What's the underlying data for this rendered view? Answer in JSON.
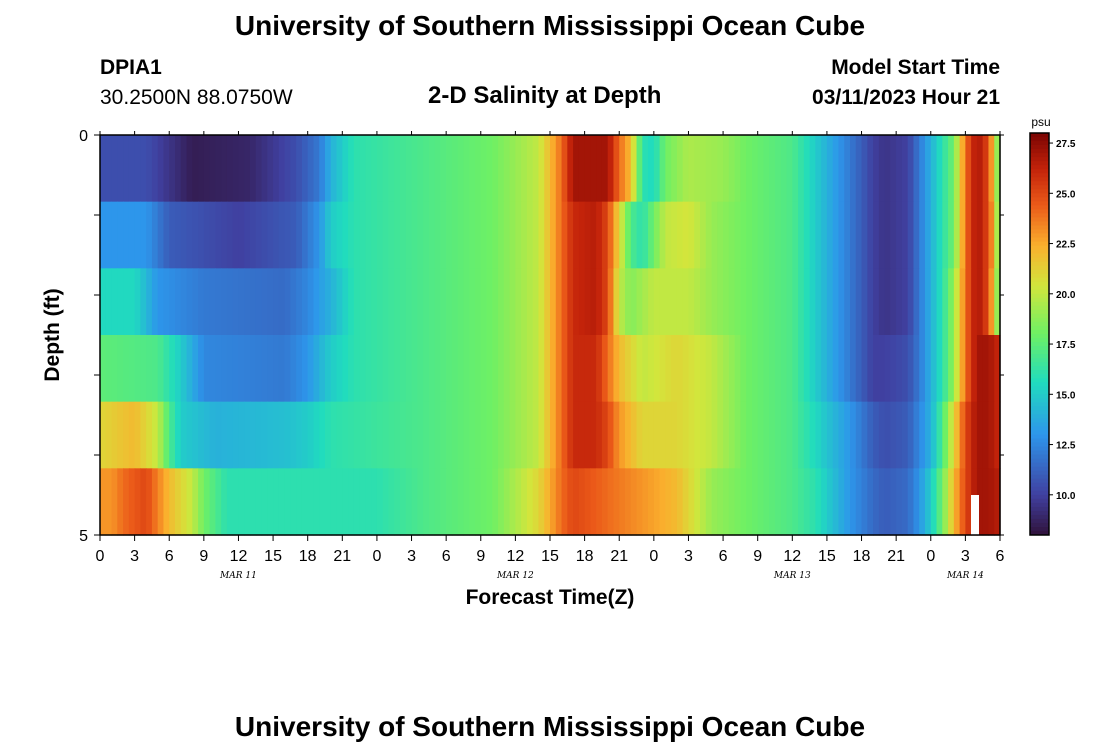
{
  "header": {
    "title": "University of Southern Mississippi Ocean Cube",
    "station": "DPIA1",
    "coords": "30.2500N  88.0750W",
    "subtitle": "2-D Salinity at Depth",
    "model_start_label": "Model Start Time",
    "model_start_time": "03/11/2023 Hour 21"
  },
  "footer": {
    "title": "University of Southern Mississippi Ocean Cube"
  },
  "chart_data": {
    "type": "heatmap",
    "title": "2-D Salinity at Depth",
    "xlabel": "Forecast Time(Z)",
    "ylabel": "Depth (ft)",
    "y_tick_labels": [
      "0",
      "5"
    ],
    "ylim": [
      0,
      5
    ],
    "x_tick_labels": [
      "0",
      "3",
      "6",
      "9",
      "12",
      "15",
      "18",
      "21",
      "0",
      "3",
      "6",
      "9",
      "12",
      "15",
      "18",
      "21",
      "0",
      "3",
      "6",
      "9",
      "12",
      "15",
      "18",
      "21",
      "0",
      "3",
      "6"
    ],
    "day_labels": [
      "MAR 11",
      "MAR 12",
      "MAR 13",
      "MAR 14"
    ],
    "colorbar": {
      "unit": "psu",
      "min": 8,
      "max": 28,
      "ticks": [
        "27.5",
        "25.0",
        "22.5",
        "20.0",
        "17.5",
        "15.0",
        "12.5",
        "10.0"
      ],
      "tick_values": [
        27.5,
        25.0,
        22.5,
        20.0,
        17.5,
        15.0,
        12.5,
        10.0
      ]
    },
    "time_hours_from_mar11_00": [
      0,
      78
    ],
    "depth_layers": 6,
    "salinity_keyframes_psu": [
      [
        [
          0,
          10.5
        ],
        [
          4,
          10.5
        ],
        [
          8,
          8.5
        ],
        [
          13,
          8.9
        ],
        [
          17,
          10.5
        ],
        [
          19,
          12
        ],
        [
          20,
          14
        ],
        [
          22,
          16
        ],
        [
          28,
          17
        ],
        [
          34,
          18
        ],
        [
          38,
          20
        ],
        [
          40,
          24
        ],
        [
          41,
          27
        ],
        [
          44,
          27
        ],
        [
          45,
          24
        ],
        [
          46,
          22
        ],
        [
          47,
          16
        ],
        [
          48,
          15.5
        ],
        [
          49,
          18
        ],
        [
          51,
          19.5
        ],
        [
          54,
          19
        ],
        [
          56,
          18
        ],
        [
          60,
          17
        ],
        [
          62,
          15
        ],
        [
          65,
          12
        ],
        [
          67,
          10
        ],
        [
          68,
          9.5
        ],
        [
          70,
          10
        ],
        [
          71,
          12
        ],
        [
          72,
          14
        ],
        [
          73,
          16
        ],
        [
          74,
          18
        ],
        [
          75,
          24
        ],
        [
          76,
          27
        ],
        [
          77,
          25
        ],
        [
          77.5,
          21
        ],
        [
          78,
          17
        ]
      ],
      [
        [
          0,
          13
        ],
        [
          4,
          13
        ],
        [
          6,
          11
        ],
        [
          12,
          10
        ],
        [
          17,
          11
        ],
        [
          19,
          13
        ],
        [
          20,
          15
        ],
        [
          22,
          16
        ],
        [
          28,
          17
        ],
        [
          34,
          18
        ],
        [
          38,
          20
        ],
        [
          40,
          24
        ],
        [
          41,
          26
        ],
        [
          43,
          26.5
        ],
        [
          44,
          25
        ],
        [
          45,
          21
        ],
        [
          46,
          17
        ],
        [
          47,
          16
        ],
        [
          49,
          20
        ],
        [
          51,
          20.5
        ],
        [
          53,
          19
        ],
        [
          56,
          18
        ],
        [
          60,
          17
        ],
        [
          62,
          15
        ],
        [
          65,
          12
        ],
        [
          67,
          10
        ],
        [
          68,
          9.5
        ],
        [
          70,
          10
        ],
        [
          71,
          12
        ],
        [
          72,
          14
        ],
        [
          73,
          16
        ],
        [
          74,
          18
        ],
        [
          75,
          24
        ],
        [
          76,
          27
        ],
        [
          77,
          25
        ],
        [
          77.5,
          22
        ],
        [
          78,
          17
        ]
      ],
      [
        [
          0,
          15.5
        ],
        [
          3,
          15.5
        ],
        [
          5,
          13
        ],
        [
          9,
          12
        ],
        [
          16,
          11.5
        ],
        [
          18,
          12.5
        ],
        [
          20,
          14
        ],
        [
          22,
          16
        ],
        [
          28,
          17
        ],
        [
          34,
          18
        ],
        [
          38,
          20
        ],
        [
          40,
          24
        ],
        [
          41,
          26
        ],
        [
          43,
          26.5
        ],
        [
          44,
          25
        ],
        [
          45,
          20
        ],
        [
          46,
          18.5
        ],
        [
          48,
          20
        ],
        [
          51,
          20
        ],
        [
          53,
          19
        ],
        [
          56,
          18
        ],
        [
          60,
          17
        ],
        [
          62,
          15
        ],
        [
          65,
          12
        ],
        [
          67,
          10
        ],
        [
          68,
          9.5
        ],
        [
          70,
          10
        ],
        [
          71,
          12
        ],
        [
          72,
          14
        ],
        [
          73,
          16
        ],
        [
          74,
          19
        ],
        [
          75,
          24
        ],
        [
          76,
          27
        ],
        [
          77,
          25
        ],
        [
          77.5,
          21
        ],
        [
          78,
          17
        ]
      ],
      [
        [
          0,
          17.5
        ],
        [
          5,
          17
        ],
        [
          7,
          15
        ],
        [
          9,
          12.5
        ],
        [
          16,
          12
        ],
        [
          18,
          13
        ],
        [
          20,
          15
        ],
        [
          22,
          16
        ],
        [
          28,
          17
        ],
        [
          34,
          18
        ],
        [
          38,
          20
        ],
        [
          40,
          24
        ],
        [
          41,
          26
        ],
        [
          43,
          26
        ],
        [
          44,
          24
        ],
        [
          45,
          22
        ],
        [
          47,
          20
        ],
        [
          50,
          21
        ],
        [
          53,
          20
        ],
        [
          56,
          18
        ],
        [
          60,
          17
        ],
        [
          62,
          15
        ],
        [
          65,
          12
        ],
        [
          67,
          10
        ],
        [
          68,
          10
        ],
        [
          70,
          10.5
        ],
        [
          71,
          12
        ],
        [
          72,
          14
        ],
        [
          73,
          16
        ],
        [
          74,
          19
        ],
        [
          75,
          24
        ],
        [
          76,
          27
        ],
        [
          77,
          27
        ],
        [
          78,
          26
        ]
      ],
      [
        [
          0,
          21
        ],
        [
          3,
          22
        ],
        [
          5,
          20
        ],
        [
          6,
          17
        ],
        [
          7,
          15
        ],
        [
          10,
          14
        ],
        [
          16,
          14.5
        ],
        [
          18,
          15
        ],
        [
          20,
          16
        ],
        [
          28,
          17
        ],
        [
          34,
          18
        ],
        [
          38,
          20
        ],
        [
          40,
          24
        ],
        [
          41,
          26
        ],
        [
          43,
          26
        ],
        [
          44,
          25
        ],
        [
          45,
          23
        ],
        [
          47,
          21
        ],
        [
          50,
          21
        ],
        [
          53,
          20
        ],
        [
          56,
          18
        ],
        [
          60,
          17
        ],
        [
          62,
          15.5
        ],
        [
          65,
          13
        ],
        [
          67,
          11
        ],
        [
          68,
          10.5
        ],
        [
          70,
          11
        ],
        [
          71,
          12.5
        ],
        [
          72,
          14
        ],
        [
          73,
          17
        ],
        [
          74,
          21
        ],
        [
          75,
          25
        ],
        [
          76,
          27
        ],
        [
          77,
          27
        ],
        [
          78,
          26
        ]
      ],
      [
        [
          0,
          23
        ],
        [
          1,
          23
        ],
        [
          2,
          24
        ],
        [
          4,
          25
        ],
        [
          6,
          22
        ],
        [
          8,
          20
        ],
        [
          9,
          18
        ],
        [
          11,
          16
        ],
        [
          13,
          16
        ],
        [
          20,
          16
        ],
        [
          24,
          16
        ],
        [
          28,
          17
        ],
        [
          34,
          18
        ],
        [
          38,
          21
        ],
        [
          40,
          24
        ],
        [
          41,
          25
        ],
        [
          44,
          24
        ],
        [
          47,
          23
        ],
        [
          50,
          22
        ],
        [
          51,
          21
        ],
        [
          53,
          19
        ],
        [
          56,
          18
        ],
        [
          60,
          17
        ],
        [
          62,
          16
        ],
        [
          65,
          13
        ],
        [
          67,
          11.5
        ],
        [
          68,
          11
        ],
        [
          70,
          11.5
        ],
        [
          71,
          13
        ],
        [
          72,
          15
        ],
        [
          73,
          18
        ],
        [
          74,
          22
        ],
        [
          75,
          25
        ],
        [
          76,
          27
        ],
        [
          77,
          27
        ],
        [
          78,
          26.5
        ]
      ]
    ]
  }
}
